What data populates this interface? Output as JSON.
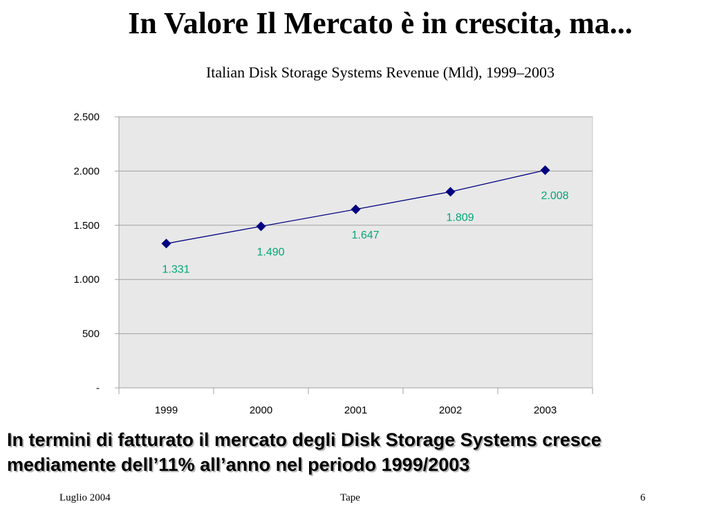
{
  "slide": {
    "title": "In Valore Il Mercato è in crescita, ma...",
    "summary": "In termini di fatturato il mercato degli Disk Storage Systems cresce mediamente dell’11% all’anno nel periodo 1999/2003"
  },
  "footer": {
    "date": "Luglio 2004",
    "topic": "Tape",
    "page_number": "6"
  },
  "chart_data": {
    "type": "line",
    "title": "Italian Disk Storage Systems Revenue (Mld), 1999–2003",
    "xlabel": "",
    "ylabel": "",
    "categories": [
      "1999",
      "2000",
      "2001",
      "2002",
      "2003"
    ],
    "series": [
      {
        "values": [
          1331,
          1490,
          1647,
          1809,
          2008
        ],
        "data_labels": [
          "1.331",
          "1.490",
          "1.647",
          "1.809",
          "2.008"
        ],
        "color": "#000080",
        "marker": "diamond"
      }
    ],
    "ylim": [
      0,
      2500
    ],
    "y_ticks": [
      0,
      500,
      1000,
      1500,
      2000,
      2500
    ],
    "y_tick_labels": [
      "-",
      "500",
      "1.000",
      "1.500",
      "2.000",
      "2.500"
    ],
    "grid": "horizontal",
    "plot_background": "#e8e8e8",
    "data_label_color": "#00a676",
    "legend": "none"
  }
}
